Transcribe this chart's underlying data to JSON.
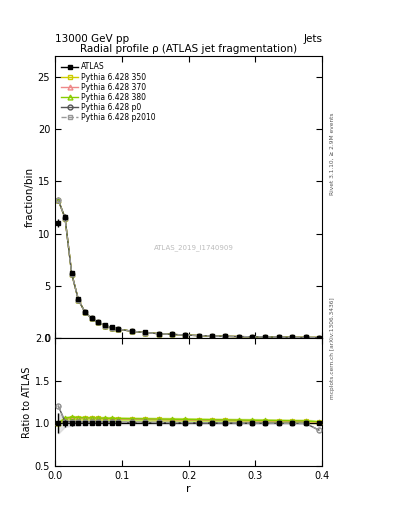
{
  "title": "Radial profile ρ (ATLAS jet fragmentation)",
  "top_left_label": "13000 GeV pp",
  "top_right_label": "Jets",
  "ylabel_main": "fraction/bin",
  "ylabel_ratio": "Ratio to ATLAS",
  "xlabel": "r",
  "watermark": "ATLAS_2019_I1740909",
  "right_label1": "Rivet 3.1.10, ≥ 2.9M events",
  "right_label2": "mcplots.cern.ch [arXiv:1306.3436]",
  "r_values": [
    0.005,
    0.015,
    0.025,
    0.035,
    0.045,
    0.055,
    0.065,
    0.075,
    0.085,
    0.095,
    0.115,
    0.135,
    0.155,
    0.175,
    0.195,
    0.215,
    0.235,
    0.255,
    0.275,
    0.295,
    0.315,
    0.335,
    0.355,
    0.375,
    0.395
  ],
  "atlas_values": [
    11.0,
    11.6,
    6.2,
    3.7,
    2.5,
    1.9,
    1.5,
    1.2,
    1.0,
    0.85,
    0.65,
    0.52,
    0.42,
    0.35,
    0.28,
    0.23,
    0.19,
    0.16,
    0.13,
    0.11,
    0.09,
    0.075,
    0.062,
    0.052,
    0.04
  ],
  "atlas_errors": [
    0.4,
    0.3,
    0.2,
    0.12,
    0.08,
    0.06,
    0.05,
    0.04,
    0.03,
    0.025,
    0.02,
    0.016,
    0.013,
    0.011,
    0.009,
    0.007,
    0.006,
    0.005,
    0.004,
    0.0035,
    0.003,
    0.0025,
    0.002,
    0.0017,
    0.0013
  ],
  "py350_values": [
    13.2,
    11.5,
    6.15,
    3.65,
    2.45,
    1.88,
    1.48,
    1.18,
    0.98,
    0.84,
    0.64,
    0.51,
    0.41,
    0.34,
    0.275,
    0.225,
    0.185,
    0.155,
    0.127,
    0.107,
    0.088,
    0.073,
    0.06,
    0.05,
    0.039
  ],
  "py370_values": [
    13.2,
    11.5,
    6.15,
    3.65,
    2.45,
    1.88,
    1.48,
    1.18,
    0.98,
    0.84,
    0.64,
    0.51,
    0.41,
    0.34,
    0.275,
    0.225,
    0.185,
    0.155,
    0.127,
    0.107,
    0.088,
    0.073,
    0.06,
    0.05,
    0.039
  ],
  "py380_values": [
    13.2,
    11.5,
    6.15,
    3.65,
    2.45,
    1.88,
    1.48,
    1.18,
    0.98,
    0.84,
    0.64,
    0.51,
    0.41,
    0.34,
    0.275,
    0.225,
    0.185,
    0.155,
    0.127,
    0.107,
    0.088,
    0.073,
    0.06,
    0.05,
    0.039
  ],
  "pyp0_values": [
    13.2,
    11.5,
    6.15,
    3.65,
    2.45,
    1.88,
    1.48,
    1.18,
    0.98,
    0.84,
    0.64,
    0.51,
    0.41,
    0.34,
    0.275,
    0.225,
    0.185,
    0.155,
    0.127,
    0.107,
    0.088,
    0.073,
    0.06,
    0.05,
    0.039
  ],
  "pyp2010_values": [
    13.2,
    11.5,
    6.15,
    3.65,
    2.45,
    1.88,
    1.48,
    1.18,
    0.98,
    0.84,
    0.64,
    0.51,
    0.41,
    0.34,
    0.275,
    0.225,
    0.185,
    0.155,
    0.127,
    0.107,
    0.088,
    0.073,
    0.06,
    0.05,
    0.039
  ],
  "py350_ratio": [
    1.0,
    1.055,
    1.065,
    1.062,
    1.058,
    1.058,
    1.056,
    1.054,
    1.052,
    1.05,
    1.048,
    1.046,
    1.044,
    1.042,
    1.04,
    1.038,
    1.036,
    1.034,
    1.032,
    1.03,
    1.028,
    1.026,
    1.024,
    1.022,
    1.01
  ],
  "py370_ratio": [
    1.0,
    1.055,
    1.065,
    1.062,
    1.058,
    1.058,
    1.056,
    1.054,
    1.052,
    1.05,
    1.048,
    1.046,
    1.044,
    1.042,
    1.04,
    1.038,
    1.036,
    1.034,
    1.032,
    1.03,
    1.028,
    1.026,
    1.024,
    1.022,
    1.01
  ],
  "py380_ratio": [
    1.0,
    1.06,
    1.07,
    1.067,
    1.063,
    1.063,
    1.061,
    1.059,
    1.057,
    1.055,
    1.053,
    1.051,
    1.049,
    1.047,
    1.045,
    1.043,
    1.041,
    1.039,
    1.037,
    1.035,
    1.033,
    1.031,
    1.029,
    1.027,
    1.015
  ],
  "pyp0_ratio": [
    1.2,
    1.02,
    1.02,
    1.018,
    1.016,
    1.016,
    1.015,
    1.014,
    1.013,
    1.012,
    1.011,
    1.01,
    1.009,
    1.008,
    1.007,
    1.006,
    1.005,
    1.004,
    1.003,
    1.002,
    1.001,
    1.0,
    0.999,
    0.998,
    0.92
  ],
  "pyp2010_ratio": [
    1.2,
    1.02,
    1.02,
    1.018,
    1.016,
    1.016,
    1.015,
    1.014,
    1.013,
    1.012,
    1.011,
    1.01,
    1.009,
    1.008,
    1.007,
    1.006,
    1.005,
    1.004,
    1.003,
    1.002,
    1.001,
    1.0,
    0.999,
    0.998,
    0.92
  ],
  "atlas_ratio_err": [
    0.12,
    0.04,
    0.03,
    0.025,
    0.02,
    0.018,
    0.016,
    0.014,
    0.013,
    0.012,
    0.011,
    0.01,
    0.009,
    0.009,
    0.008,
    0.008,
    0.007,
    0.007,
    0.007,
    0.007,
    0.007,
    0.007,
    0.007,
    0.007,
    0.007
  ],
  "color_350": "#cccc00",
  "color_370": "#ee8888",
  "color_380": "#88cc00",
  "color_p0": "#555555",
  "color_p2010": "#999999",
  "color_atlas": "#000000",
  "band_color_350": "#eeee44",
  "band_color_380": "#aadd44",
  "band_atlas": "#cccccc",
  "band_alpha": 0.5,
  "xlim": [
    0.0,
    0.4
  ],
  "ylim_main": [
    0.0,
    27.0
  ],
  "ylim_ratio": [
    0.5,
    2.0
  ],
  "yticks_main": [
    0,
    5,
    10,
    15,
    20,
    25
  ],
  "yticks_ratio": [
    0.5,
    1.0,
    1.5,
    2.0
  ],
  "xticks": [
    0.0,
    0.1,
    0.2,
    0.3,
    0.4
  ],
  "legend_entries": [
    "ATLAS",
    "Pythia 6.428 350",
    "Pythia 6.428 370",
    "Pythia 6.428 380",
    "Pythia 6.428 p0",
    "Pythia 6.428 p2010"
  ]
}
